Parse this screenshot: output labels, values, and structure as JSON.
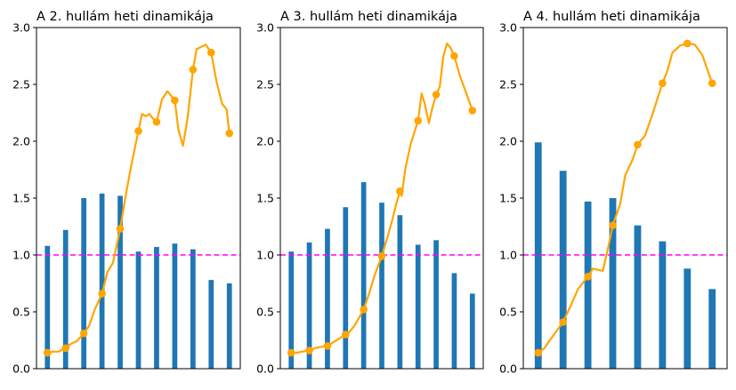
{
  "chart_data": [
    {
      "type": "bar+line",
      "title": "A 2. hullám heti dinamikája",
      "ylim": [
        0,
        3
      ],
      "yticks": [
        "0.0",
        "0.5",
        "1.0",
        "1.5",
        "2.0",
        "2.5",
        "3.0"
      ],
      "grid": false,
      "bars": [
        1.08,
        1.22,
        1.5,
        1.54,
        1.52,
        1.03,
        1.07,
        1.1,
        1.05,
        0.78,
        0.75
      ],
      "reference_line": 1.0,
      "line_markers": [
        0.14,
        0.18,
        0.31,
        0.66,
        1.23,
        2.09,
        2.17,
        2.36,
        2.63,
        2.78,
        2.07
      ],
      "curve": [
        [
          0,
          0.14
        ],
        [
          0.3,
          0.15
        ],
        [
          0.6,
          0.15
        ],
        [
          1,
          0.18
        ],
        [
          1.3,
          0.22
        ],
        [
          1.6,
          0.24
        ],
        [
          2,
          0.31
        ],
        [
          2.3,
          0.38
        ],
        [
          2.6,
          0.52
        ],
        [
          3,
          0.66
        ],
        [
          3.3,
          0.85
        ],
        [
          3.6,
          0.93
        ],
        [
          4,
          1.23
        ],
        [
          4.3,
          1.52
        ],
        [
          4.6,
          1.78
        ],
        [
          5,
          2.09
        ],
        [
          5.2,
          2.24
        ],
        [
          5.4,
          2.22
        ],
        [
          5.6,
          2.24
        ],
        [
          5.8,
          2.2
        ],
        [
          6,
          2.17
        ],
        [
          6.3,
          2.37
        ],
        [
          6.6,
          2.44
        ],
        [
          7,
          2.36
        ],
        [
          7.2,
          2.1
        ],
        [
          7.45,
          1.96
        ],
        [
          7.7,
          2.2
        ],
        [
          8,
          2.63
        ],
        [
          8.2,
          2.81
        ],
        [
          8.45,
          2.83
        ],
        [
          8.7,
          2.85
        ],
        [
          9,
          2.78
        ],
        [
          9.3,
          2.52
        ],
        [
          9.6,
          2.33
        ],
        [
          9.85,
          2.28
        ],
        [
          10,
          2.07
        ]
      ],
      "colors": {
        "bar": "#1f77b4",
        "line": "#ffa500",
        "reference": "#ff00ff"
      }
    },
    {
      "type": "bar+line",
      "title": "A 3. hullám heti dinamikája",
      "ylim": [
        0,
        3
      ],
      "yticks": [
        "0.0",
        "0.5",
        "1.0",
        "1.5",
        "2.0",
        "2.5",
        "3.0"
      ],
      "grid": false,
      "bars": [
        1.03,
        1.11,
        1.23,
        1.42,
        1.64,
        1.46,
        1.35,
        1.09,
        1.13,
        0.84,
        0.66
      ],
      "reference_line": 1.0,
      "line_markers": [
        0.14,
        0.16,
        0.2,
        0.3,
        0.52,
        0.99,
        1.56,
        2.18,
        2.41,
        2.75,
        2.27
      ],
      "curve": [
        [
          0,
          0.14
        ],
        [
          0.3,
          0.14
        ],
        [
          0.6,
          0.15
        ],
        [
          1,
          0.16
        ],
        [
          1.3,
          0.18
        ],
        [
          1.6,
          0.19
        ],
        [
          2,
          0.2
        ],
        [
          2.3,
          0.23
        ],
        [
          2.6,
          0.26
        ],
        [
          3,
          0.3
        ],
        [
          3.2,
          0.32
        ],
        [
          3.5,
          0.38
        ],
        [
          4,
          0.52
        ],
        [
          4.3,
          0.66
        ],
        [
          4.6,
          0.82
        ],
        [
          5,
          0.99
        ],
        [
          5.3,
          1.15
        ],
        [
          5.6,
          1.32
        ],
        [
          5.8,
          1.45
        ],
        [
          6,
          1.56
        ],
        [
          6.1,
          1.52
        ],
        [
          6.3,
          1.76
        ],
        [
          6.6,
          1.98
        ],
        [
          7,
          2.18
        ],
        [
          7.2,
          2.42
        ],
        [
          7.35,
          2.34
        ],
        [
          7.6,
          2.16
        ],
        [
          7.8,
          2.3
        ],
        [
          8,
          2.41
        ],
        [
          8.2,
          2.48
        ],
        [
          8.4,
          2.75
        ],
        [
          8.6,
          2.86
        ],
        [
          8.8,
          2.82
        ],
        [
          9,
          2.75
        ],
        [
          9.3,
          2.58
        ],
        [
          9.6,
          2.45
        ],
        [
          10,
          2.27
        ]
      ],
      "colors": {
        "bar": "#1f77b4",
        "line": "#ffa500",
        "reference": "#ff00ff"
      }
    },
    {
      "type": "bar+line",
      "title": "A 4. hullám heti dinamikája",
      "ylim": [
        0,
        3
      ],
      "yticks": [
        "0.0",
        "0.5",
        "1.0",
        "1.5",
        "2.0",
        "2.5",
        "3.0"
      ],
      "grid": false,
      "bars": [
        1.99,
        1.74,
        1.47,
        1.5,
        1.26,
        1.12,
        0.88,
        0.7
      ],
      "reference_line": 1.0,
      "line_markers": [
        0.14,
        0.41,
        0.81,
        1.26,
        1.97,
        2.51,
        2.86,
        2.51
      ],
      "curve": [
        [
          0,
          0.14
        ],
        [
          0.25,
          0.18
        ],
        [
          0.5,
          0.26
        ],
        [
          1,
          0.41
        ],
        [
          1.3,
          0.55
        ],
        [
          1.6,
          0.7
        ],
        [
          2,
          0.81
        ],
        [
          2.2,
          0.88
        ],
        [
          2.4,
          0.87
        ],
        [
          2.6,
          0.86
        ],
        [
          2.8,
          1.05
        ],
        [
          3,
          1.26
        ],
        [
          3.3,
          1.45
        ],
        [
          3.5,
          1.7
        ],
        [
          3.8,
          1.84
        ],
        [
          4,
          1.97
        ],
        [
          4.3,
          2.05
        ],
        [
          4.6,
          2.24
        ],
        [
          5,
          2.51
        ],
        [
          5.2,
          2.62
        ],
        [
          5.4,
          2.78
        ],
        [
          5.7,
          2.84
        ],
        [
          6,
          2.86
        ],
        [
          6.3,
          2.85
        ],
        [
          6.6,
          2.76
        ],
        [
          7,
          2.51
        ]
      ],
      "colors": {
        "bar": "#1f77b4",
        "line": "#ffa500",
        "reference": "#ff00ff"
      }
    }
  ]
}
